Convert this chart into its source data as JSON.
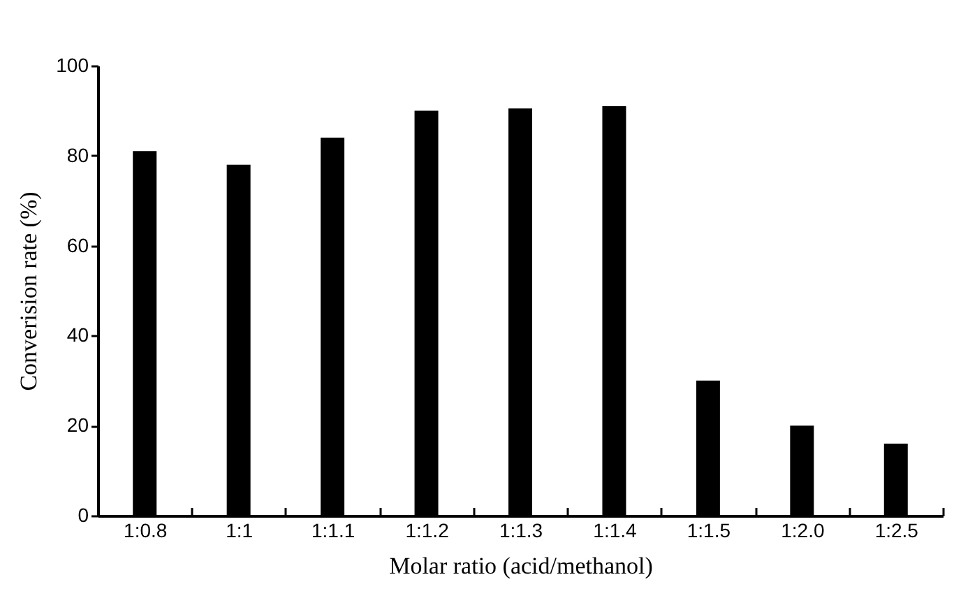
{
  "chart_data": {
    "type": "bar",
    "xlabel": "Molar ratio (acid/methanol)",
    "ylabel": "Converision rate (%)",
    "categories": [
      "1:0.8",
      "1:1",
      "1:1.1",
      "1:1.2",
      "1:1.3",
      "1:1.4",
      "1:1.5",
      "1:2.0",
      "1:2.5"
    ],
    "values": [
      81,
      78,
      84,
      90,
      90.5,
      91,
      30,
      20,
      16
    ],
    "color": "#000000",
    "ylim": [
      0,
      100
    ],
    "yticks": [
      0,
      20,
      40,
      60,
      80,
      100
    ],
    "grid": false
  }
}
